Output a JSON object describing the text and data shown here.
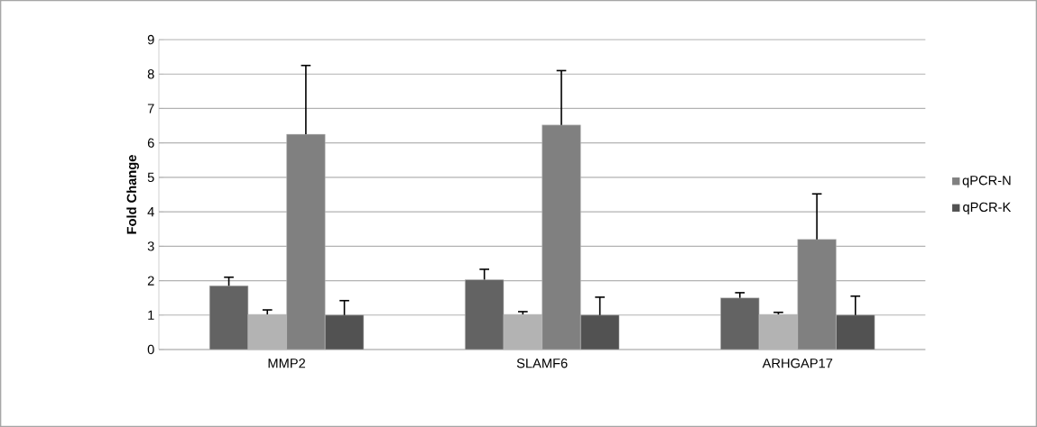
{
  "chart_data": {
    "type": "bar",
    "ylabel": "Fold Change",
    "categories": [
      "MMP2",
      "SLAMF6",
      "ARHGAP17"
    ],
    "series": [
      {
        "color": "#636363",
        "values": [
          1.85,
          2.03,
          1.5
        ],
        "errors": [
          [
            1.85,
            2.1
          ],
          [
            2.03,
            2.33
          ],
          [
            1.5,
            1.65
          ]
        ]
      },
      {
        "color": "#b3b3b3",
        "values": [
          1.02,
          1.02,
          1.02
        ],
        "errors": [
          [
            1.02,
            1.15
          ],
          [
            1.02,
            1.1
          ],
          [
            1.02,
            1.08
          ]
        ]
      },
      {
        "name": "qPCR-N",
        "color": "#808080",
        "values": [
          6.25,
          6.52,
          3.2
        ],
        "errors": [
          [
            6.25,
            8.25
          ],
          [
            6.52,
            8.1
          ],
          [
            3.2,
            4.52
          ]
        ]
      },
      {
        "name": "qPCR-K",
        "color": "#525252",
        "values": [
          1.0,
          1.0,
          1.0
        ],
        "errors": [
          [
            1.0,
            1.42
          ],
          [
            1.0,
            1.52
          ],
          [
            1.0,
            1.55
          ]
        ]
      }
    ],
    "ylim": [
      0,
      9
    ],
    "yticks": [
      0,
      1,
      2,
      3,
      4,
      5,
      6,
      7,
      8,
      9
    ],
    "grid": "y",
    "legend": "right"
  }
}
